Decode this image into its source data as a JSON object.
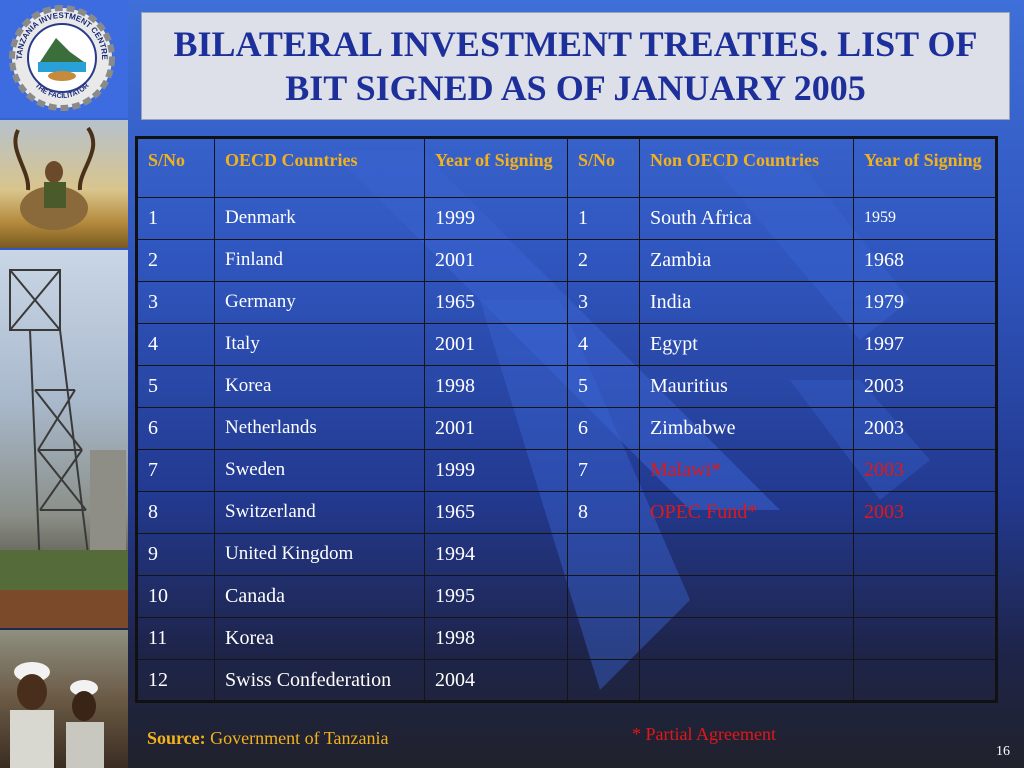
{
  "title": "BILATERAL INVESTMENT TREATIES. LIST OF BIT SIGNED AS OF JANUARY 2005",
  "logo": {
    "text_top": "TANZANIA INVESTMENT CENTRE",
    "text_bottom": "THE FACILITATOR"
  },
  "table": {
    "headers": [
      "S/No",
      "OECD Countries",
      "Year of Signing",
      "S/No",
      "Non OECD Countries",
      "Year of Signing"
    ],
    "rows": [
      {
        "sn1": "1",
        "oecd": "Denmark",
        "year1": "1999",
        "sn2": "1",
        "non_oecd": "South Africa",
        "year2": "1959"
      },
      {
        "sn1": "2",
        "oecd": "Finland",
        "year1": "2001",
        "sn2": "2",
        "non_oecd": "Zambia",
        "year2": "1968"
      },
      {
        "sn1": "3",
        "oecd": "Germany",
        "year1": "1965",
        "sn2": "3",
        "non_oecd": "India",
        "year2": "1979"
      },
      {
        "sn1": "4",
        "oecd": "Italy",
        "year1": "2001",
        "sn2": "4",
        "non_oecd": "Egypt",
        "year2": "1997"
      },
      {
        "sn1": "5",
        "oecd": "Korea",
        "year1": "1998",
        "sn2": "5",
        "non_oecd": "Mauritius",
        "year2": "2003"
      },
      {
        "sn1": "6",
        "oecd": "Netherlands",
        "year1": "2001",
        "sn2": "6",
        "non_oecd": "Zimbabwe",
        "year2": "2003"
      },
      {
        "sn1": "7",
        "oecd": "Sweden",
        "year1": "1999",
        "sn2": "7",
        "non_oecd": "Malawi*",
        "year2": "2003"
      },
      {
        "sn1": "8",
        "oecd": "Switzerland",
        "year1": "1965",
        "sn2": "8",
        "non_oecd": "OPEC Fund*",
        "year2": "2003"
      },
      {
        "sn1": "9",
        "oecd": "United Kingdom",
        "year1": "1994",
        "sn2": "",
        "non_oecd": "",
        "year2": ""
      },
      {
        "sn1": "10",
        "oecd": "Canada",
        "year1": "1995",
        "sn2": "",
        "non_oecd": "",
        "year2": ""
      },
      {
        "sn1": "11",
        "oecd": "Korea",
        "year1": "1998",
        "sn2": "",
        "non_oecd": "",
        "year2": ""
      },
      {
        "sn1": "12",
        "oecd": "Swiss Confederation",
        "year1": "2004",
        "sn2": "",
        "non_oecd": "",
        "year2": ""
      }
    ]
  },
  "footer": {
    "source_label": "Source:",
    "source_text": "Government of Tanzania",
    "partial_note": "* Partial Agreement",
    "slide_number": "16"
  },
  "colors": {
    "title": "#1d2f9a",
    "header_text": "#f3b21c",
    "partial": "#e01818",
    "source": "#f3b21c"
  }
}
